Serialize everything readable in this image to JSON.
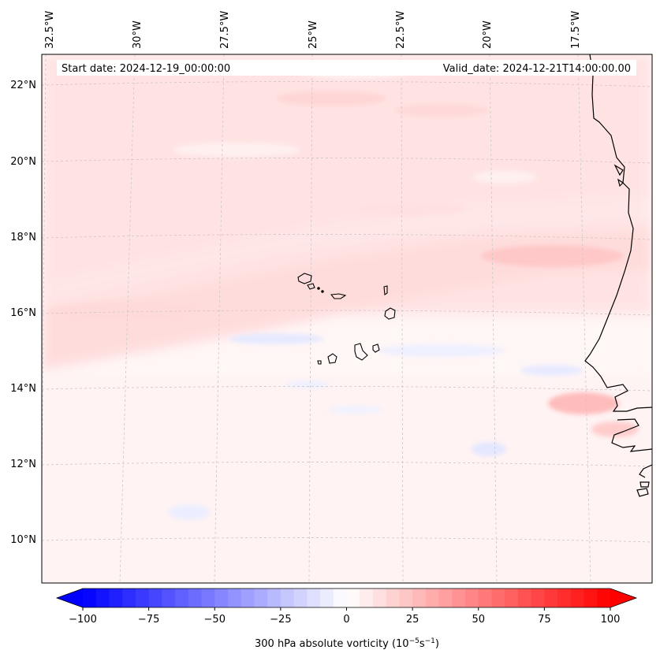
{
  "map": {
    "top_labels": [
      "32.5°W",
      "30°W",
      "27.5°W",
      "25°W",
      "22.5°W",
      "20°W",
      "17.5°W"
    ],
    "left_labels": [
      "22°N",
      "20°N",
      "18°N",
      "16°N",
      "14°N",
      "12°N",
      "10°N"
    ],
    "start_date": "Start date: 2024-12-19_00:00:00",
    "valid_date": "Valid_date: 2024-12-21T14:00:00.00"
  },
  "colorbar": {
    "label_text": "300 hPa absolute vorticity (10",
    "label_exp1": "−5",
    "label_mid": "s",
    "label_exp2": "−1",
    "label_end": ")",
    "min": -100,
    "max": 100,
    "step": 5,
    "ticks": [
      "−100",
      "−75",
      "−50",
      "−25",
      "0",
      "25",
      "50",
      "75",
      "100"
    ],
    "colors": {
      "negative": "#0000ff",
      "zero": "#ffffff",
      "positive": "#ff0000"
    }
  },
  "colors": {
    "coastline": "#000000",
    "gridline": "#c8c8c8"
  }
}
